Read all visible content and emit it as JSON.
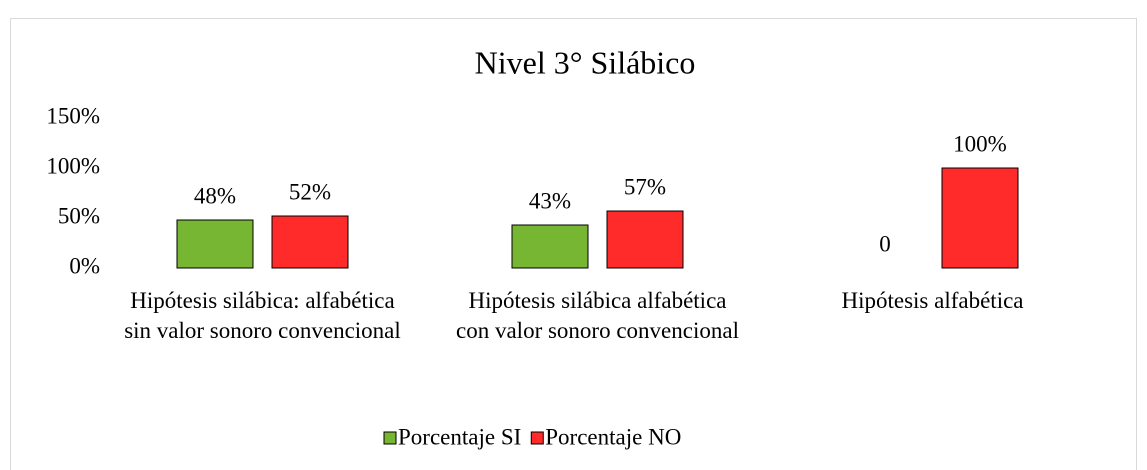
{
  "chart_data": {
    "type": "bar",
    "title": "Nivel 3° Silábico",
    "categories": [
      "Hipótesis silábica: alfabética sin valor sonoro convencional",
      "Hipótesis silábica alfabética con valor sonoro convencional",
      "Hipótesis alfabética"
    ],
    "series": [
      {
        "name": "Porcentaje SI",
        "color": "#77b633",
        "values": [
          48,
          43,
          0
        ],
        "value_labels": [
          "48%",
          "43%",
          "0"
        ]
      },
      {
        "name": "Porcentaje NO",
        "color": "#ff2a2a",
        "values": [
          52,
          57,
          100
        ],
        "value_labels": [
          "52%",
          "57%",
          "100%"
        ]
      }
    ],
    "ylim": [
      0,
      150
    ],
    "yticks": [
      {
        "value": 0,
        "label": "0%"
      },
      {
        "value": 50,
        "label": "50%"
      },
      {
        "value": 100,
        "label": "100%"
      },
      {
        "value": 150,
        "label": "150%"
      }
    ],
    "grid": false,
    "legend": "bottom"
  }
}
